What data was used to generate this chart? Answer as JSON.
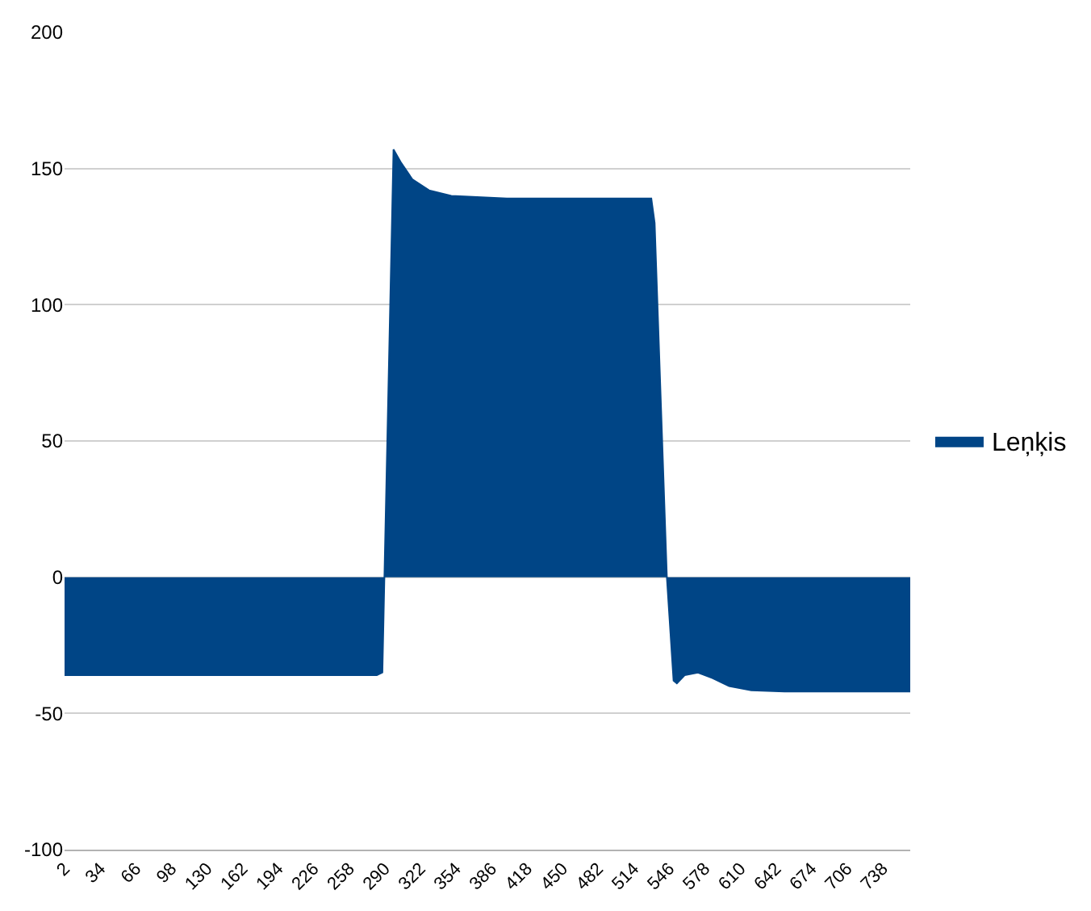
{
  "chart_data": {
    "type": "area",
    "x": [
      2,
      283,
      288,
      298,
      305,
      315,
      330,
      350,
      400,
      530,
      533,
      544,
      550,
      553,
      560,
      572,
      585,
      600,
      620,
      650,
      763
    ],
    "series": [
      {
        "name": "Leņķis",
        "color": "#004586",
        "values": [
          -36,
          -36,
          -35,
          157,
          152,
          146,
          142,
          140,
          139,
          139,
          130,
          0,
          -38,
          -39,
          -36,
          -35,
          -37,
          -40,
          -41.5,
          -42,
          -42
        ]
      }
    ],
    "xlim": [
      2,
      763
    ],
    "xticks": [
      2,
      34,
      66,
      98,
      130,
      162,
      194,
      226,
      258,
      290,
      322,
      354,
      386,
      418,
      450,
      482,
      514,
      546,
      578,
      610,
      642,
      674,
      706,
      738
    ],
    "ylim": [
      -100,
      200
    ],
    "yticks": [
      -100,
      -50,
      0,
      50,
      100,
      150,
      200
    ],
    "grid": "y",
    "legend": "right"
  }
}
